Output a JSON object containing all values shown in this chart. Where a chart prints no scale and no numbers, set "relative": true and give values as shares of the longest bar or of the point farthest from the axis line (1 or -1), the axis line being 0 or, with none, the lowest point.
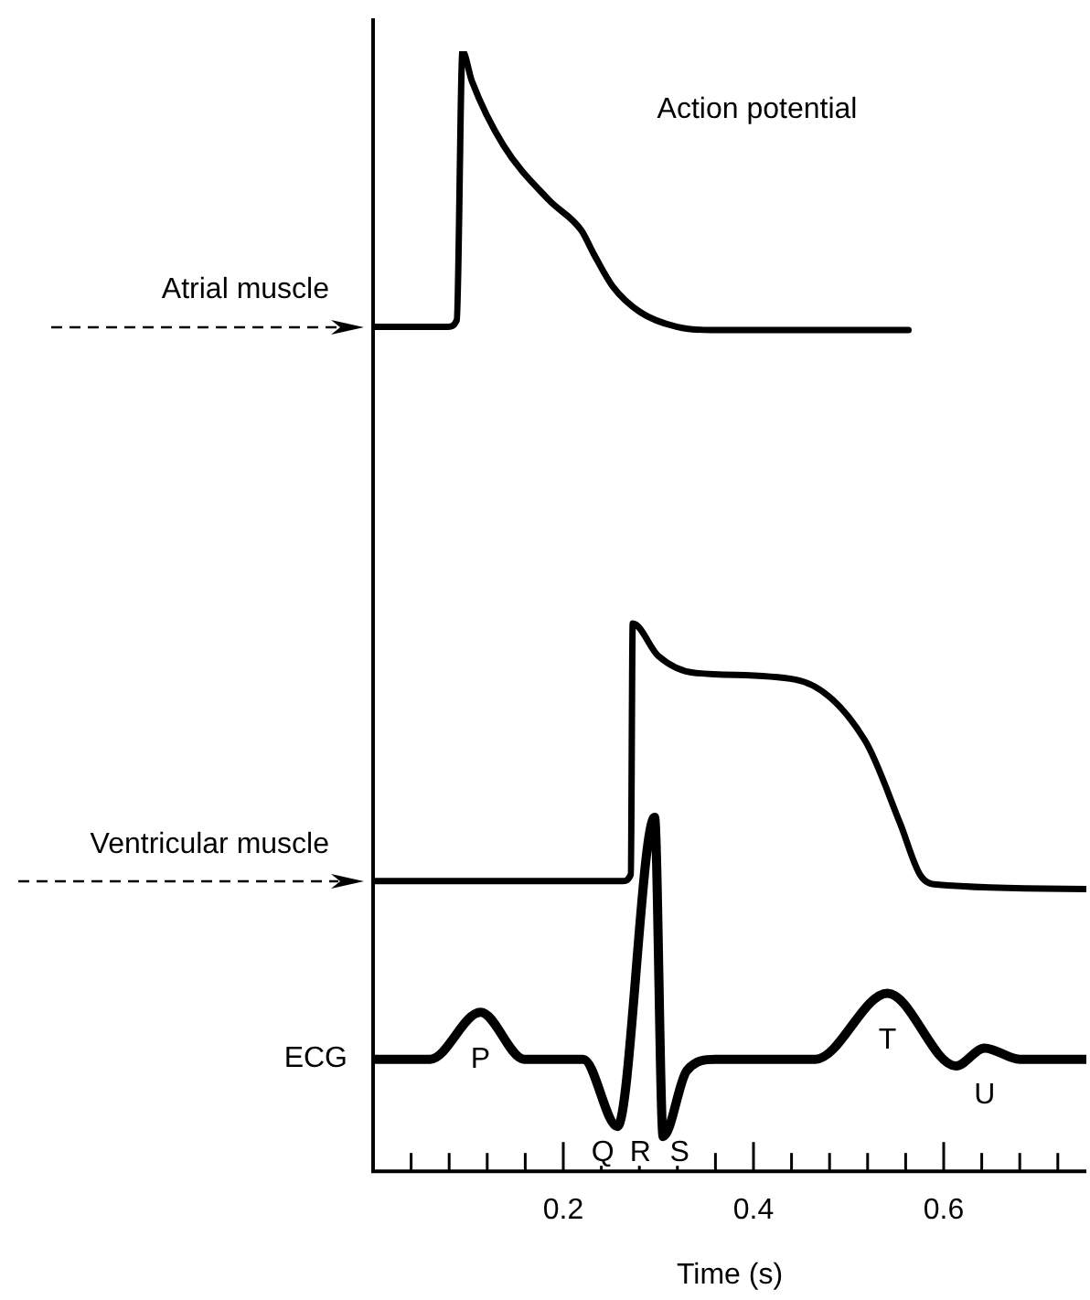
{
  "chart_data": {
    "type": "line",
    "relative": true,
    "xlabel": "Time (s)",
    "xlim": [
      0,
      0.75
    ],
    "xticks": [
      {
        "value": 0.04,
        "label": null
      },
      {
        "value": 0.08,
        "label": null
      },
      {
        "value": 0.12,
        "label": null
      },
      {
        "value": 0.16,
        "label": null
      },
      0.2,
      {
        "value": 0.24,
        "label": null
      },
      {
        "value": 0.28,
        "label": null
      },
      {
        "value": 0.32,
        "label": null
      },
      {
        "value": 0.36,
        "label": null
      },
      0.4,
      {
        "value": 0.44,
        "label": null
      },
      {
        "value": 0.48,
        "label": null
      },
      {
        "value": 0.52,
        "label": null
      },
      {
        "value": 0.56,
        "label": null
      },
      0.6,
      {
        "value": 0.64,
        "label": null
      },
      {
        "value": 0.68,
        "label": null
      },
      {
        "value": 0.72,
        "label": null
      }
    ],
    "grid": false,
    "legend": false,
    "marker": "none",
    "line_style": "solid",
    "annotations": [
      "Action potential",
      {
        "text": "P",
        "x": 0.113,
        "y": 0.142
      },
      {
        "text": "Q",
        "x": 0.257,
        "y": 0.04
      },
      "R",
      {
        "text": "S",
        "x": 0.305,
        "y": 0.031
      },
      {
        "text": "T",
        "x": 0.541,
        "y": 0.159
      },
      {
        "text": "U",
        "x": 0.643,
        "y": 0.11
      }
    ],
    "series": [
      {
        "name": "Atrial muscle",
        "color": "#000000",
        "x": [
          0,
          0.079,
          0.088,
          0.094,
          0.104,
          0.137,
          0.185,
          0.219,
          0.232,
          0.252,
          0.281,
          0.319,
          0.356,
          0.563
        ],
        "values": [
          0.754,
          0.754,
          0.76,
          1.0,
          0.973,
          0.916,
          0.867,
          0.84,
          0.819,
          0.79,
          0.767,
          0.754,
          0.751,
          0.751
        ]
      },
      {
        "name": "Ventricular muscle",
        "color": "#000000",
        "x": [
          0,
          0.262,
          0.271,
          0.273,
          0.3,
          0.338,
          0.444,
          0.517,
          0.554,
          0.575,
          0.592,
          0.75
        ],
        "values": [
          0.259,
          0.259,
          0.265,
          0.489,
          0.46,
          0.445,
          0.439,
          0.385,
          0.311,
          0.265,
          0.256,
          0.252
        ]
      },
      {
        "name": "ECG",
        "color": "#000000",
        "x": [
          0,
          0.06,
          0.113,
          0.159,
          0.221,
          0.257,
          0.296,
          0.305,
          0.33,
          0.36,
          0.465,
          0.541,
          0.613,
          0.643,
          0.68,
          0.75
        ],
        "values": [
          0.1,
          0.1,
          0.142,
          0.1,
          0.1,
          0.04,
          0.316,
          0.031,
          0.09,
          0.1,
          0.1,
          0.159,
          0.094,
          0.11,
          0.1,
          0.1
        ]
      }
    ]
  }
}
